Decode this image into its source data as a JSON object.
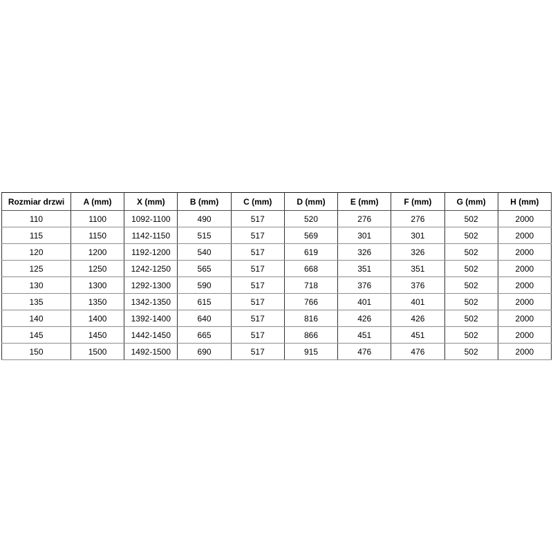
{
  "table": {
    "columns": [
      "Rozmiar drzwi",
      "A (mm)",
      "X (mm)",
      "B (mm)",
      "C (mm)",
      "D (mm)",
      "E (mm)",
      "F (mm)",
      "G (mm)",
      "H (mm)"
    ],
    "rows": [
      [
        "110",
        "1100",
        "1092-1100",
        "490",
        "517",
        "520",
        "276",
        "276",
        "502",
        "2000"
      ],
      [
        "115",
        "1150",
        "1142-1150",
        "515",
        "517",
        "569",
        "301",
        "301",
        "502",
        "2000"
      ],
      [
        "120",
        "1200",
        "1192-1200",
        "540",
        "517",
        "619",
        "326",
        "326",
        "502",
        "2000"
      ],
      [
        "125",
        "1250",
        "1242-1250",
        "565",
        "517",
        "668",
        "351",
        "351",
        "502",
        "2000"
      ],
      [
        "130",
        "1300",
        "1292-1300",
        "590",
        "517",
        "718",
        "376",
        "376",
        "502",
        "2000"
      ],
      [
        "135",
        "1350",
        "1342-1350",
        "615",
        "517",
        "766",
        "401",
        "401",
        "502",
        "2000"
      ],
      [
        "140",
        "1400",
        "1392-1400",
        "640",
        "517",
        "816",
        "426",
        "426",
        "502",
        "2000"
      ],
      [
        "145",
        "1450",
        "1442-1450",
        "665",
        "517",
        "866",
        "451",
        "451",
        "502",
        "2000"
      ],
      [
        "150",
        "1500",
        "1492-1500",
        "690",
        "517",
        "915",
        "476",
        "476",
        "502",
        "2000"
      ]
    ],
    "colors": {
      "background": "#ffffff",
      "text": "#000000",
      "border_vertical": "#2e2e2e",
      "border_horizontal": "#8c8c8c",
      "border_outer": "#1a1a1a"
    }
  },
  "chart_data": {
    "type": "table",
    "title": "",
    "columns": [
      "Rozmiar drzwi",
      "A (mm)",
      "X (mm)",
      "B (mm)",
      "C (mm)",
      "D (mm)",
      "E (mm)",
      "F (mm)",
      "G (mm)",
      "H (mm)"
    ],
    "rows": [
      [
        "110",
        "1100",
        "1092-1100",
        "490",
        "517",
        "520",
        "276",
        "276",
        "502",
        "2000"
      ],
      [
        "115",
        "1150",
        "1142-1150",
        "515",
        "517",
        "569",
        "301",
        "301",
        "502",
        "2000"
      ],
      [
        "120",
        "1200",
        "1192-1200",
        "540",
        "517",
        "619",
        "326",
        "326",
        "502",
        "2000"
      ],
      [
        "125",
        "1250",
        "1242-1250",
        "565",
        "517",
        "668",
        "351",
        "351",
        "502",
        "2000"
      ],
      [
        "130",
        "1300",
        "1292-1300",
        "590",
        "517",
        "718",
        "376",
        "376",
        "502",
        "2000"
      ],
      [
        "135",
        "1350",
        "1342-1350",
        "615",
        "517",
        "766",
        "401",
        "401",
        "502",
        "2000"
      ],
      [
        "140",
        "1400",
        "1392-1400",
        "640",
        "517",
        "816",
        "426",
        "426",
        "502",
        "2000"
      ],
      [
        "145",
        "1450",
        "1442-1450",
        "665",
        "517",
        "866",
        "451",
        "451",
        "502",
        "2000"
      ],
      [
        "150",
        "1500",
        "1492-1500",
        "690",
        "517",
        "915",
        "476",
        "476",
        "502",
        "2000"
      ]
    ]
  }
}
